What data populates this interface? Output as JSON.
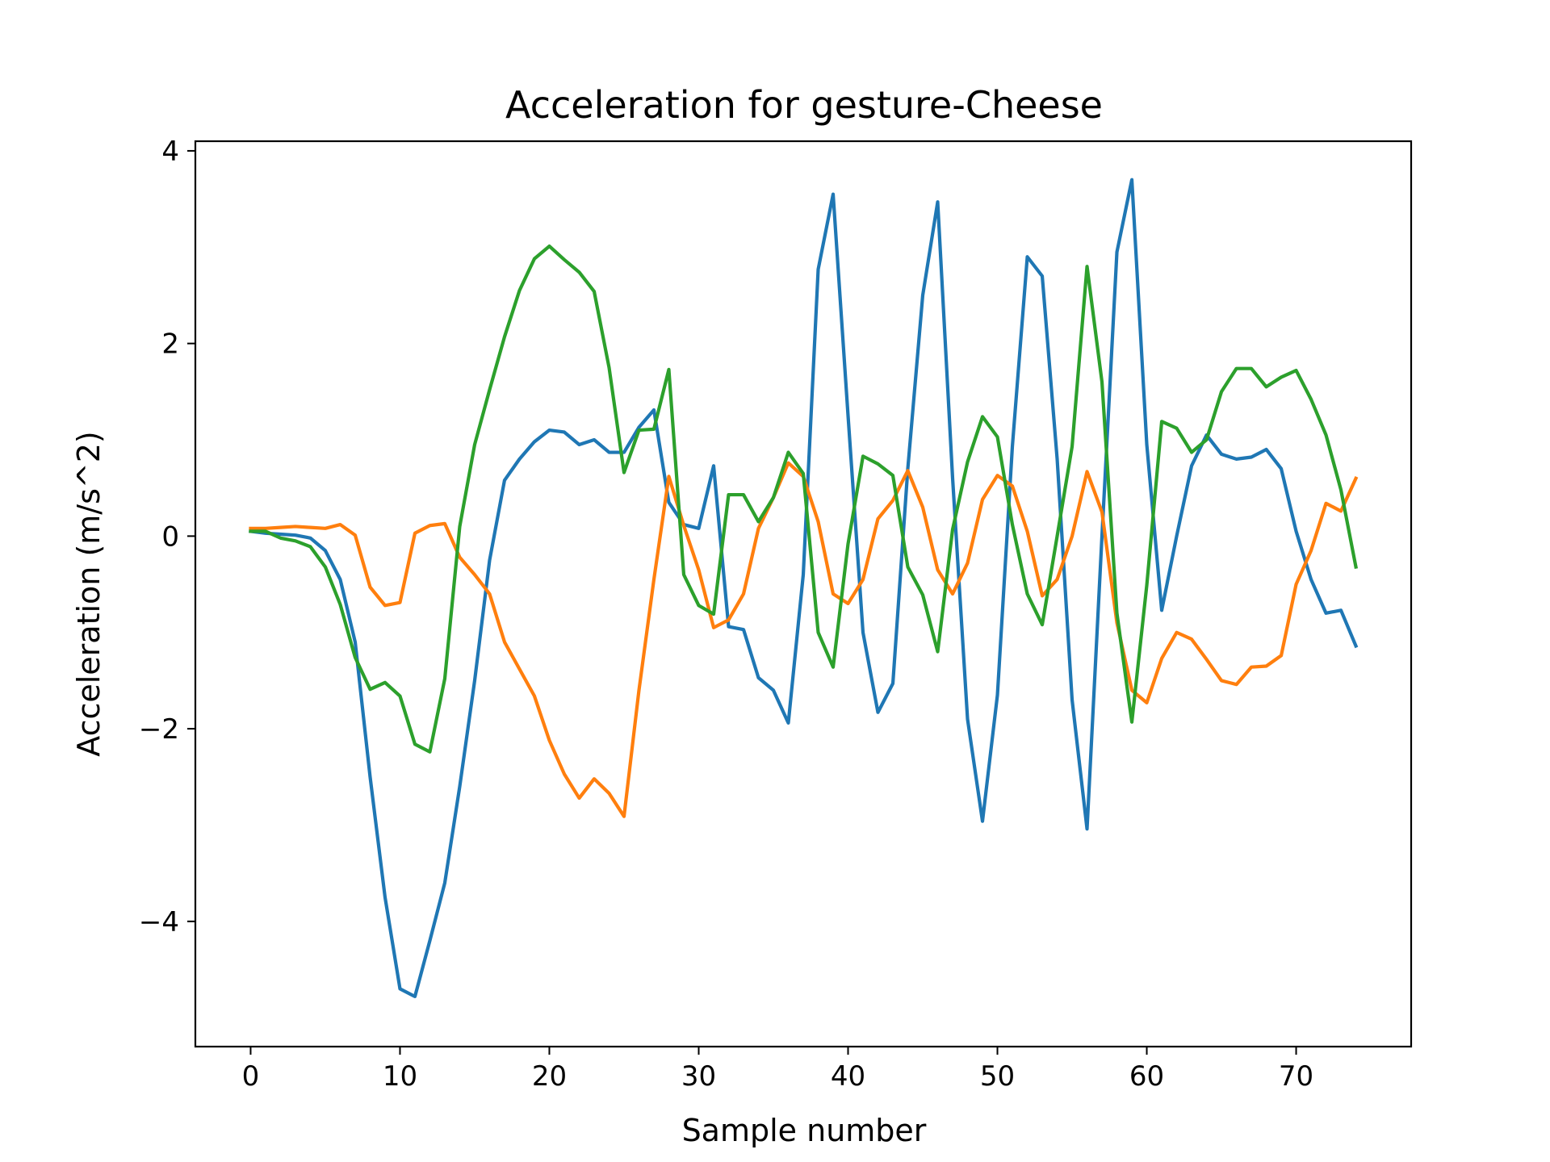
{
  "chart_data": {
    "type": "line",
    "title": "Acceleration for gesture-Cheese",
    "xlabel": "Sample number",
    "ylabel": "Acceleration (m/s^2)",
    "xlim": [
      -3.7,
      77.7
    ],
    "ylim": [
      -5.3,
      4.1
    ],
    "xticks": [
      0,
      10,
      20,
      30,
      40,
      50,
      60,
      70
    ],
    "yticks": [
      -4,
      -2,
      0,
      2,
      4
    ],
    "xtick_labels": [
      "0",
      "10",
      "20",
      "30",
      "40",
      "50",
      "60",
      "70"
    ],
    "ytick_labels": [
      "−4",
      "−2",
      "0",
      "2",
      "4"
    ],
    "grid": false,
    "legend": "none",
    "series": [
      {
        "color": "#1f77b4",
        "values": [
          0.05,
          0.03,
          0.02,
          0.01,
          -0.02,
          -0.15,
          -0.45,
          -1.1,
          -2.5,
          -3.75,
          -4.7,
          -4.78,
          -4.2,
          -3.6,
          -2.6,
          -1.5,
          -0.25,
          0.58,
          0.8,
          0.98,
          1.1,
          1.08,
          0.95,
          1.0,
          0.87,
          0.87,
          1.13,
          1.31,
          0.35,
          0.12,
          0.08,
          0.73,
          -0.94,
          -0.97,
          -1.47,
          -1.6,
          -1.94,
          -0.4,
          2.77,
          3.55,
          1.25,
          -1.0,
          -1.83,
          -1.53,
          0.7,
          2.5,
          3.47,
          0.6,
          -1.9,
          -2.96,
          -1.65,
          0.93,
          2.9,
          2.7,
          0.8,
          -1.7,
          -3.04,
          0.0,
          2.95,
          3.7,
          0.95,
          -0.77,
          0.0,
          0.73,
          1.05,
          0.85,
          0.8,
          0.82,
          0.9,
          0.7,
          0.05,
          -0.45,
          -0.8,
          -0.77,
          -1.14
        ]
      },
      {
        "color": "#ff7f0e",
        "values": [
          0.08,
          0.08,
          0.09,
          0.1,
          0.09,
          0.08,
          0.12,
          0.01,
          -0.53,
          -0.72,
          -0.69,
          0.03,
          0.11,
          0.13,
          -0.22,
          -0.4,
          -0.6,
          -1.1,
          -1.38,
          -1.66,
          -2.12,
          -2.47,
          -2.72,
          -2.52,
          -2.67,
          -2.91,
          -1.6,
          -0.45,
          0.62,
          0.11,
          -0.35,
          -0.95,
          -0.87,
          -0.6,
          0.08,
          0.4,
          0.76,
          0.62,
          0.15,
          -0.6,
          -0.7,
          -0.45,
          0.18,
          0.37,
          0.68,
          0.3,
          -0.35,
          -0.6,
          -0.28,
          0.38,
          0.63,
          0.52,
          0.05,
          -0.62,
          -0.45,
          0.0,
          0.67,
          0.25,
          -0.9,
          -1.6,
          -1.73,
          -1.27,
          -1.0,
          -1.07,
          -1.28,
          -1.5,
          -1.54,
          -1.36,
          -1.35,
          -1.24,
          -0.5,
          -0.15,
          0.34,
          0.26,
          0.6
        ]
      },
      {
        "color": "#2ca02c",
        "values": [
          0.05,
          0.05,
          -0.02,
          -0.05,
          -0.11,
          -0.32,
          -0.71,
          -1.26,
          -1.59,
          -1.52,
          -1.66,
          -2.16,
          -2.24,
          -1.48,
          0.1,
          0.95,
          1.52,
          2.07,
          2.55,
          2.88,
          3.01,
          2.87,
          2.74,
          2.54,
          1.75,
          0.66,
          1.1,
          1.11,
          1.73,
          -0.4,
          -0.72,
          -0.81,
          0.43,
          0.43,
          0.15,
          0.4,
          0.87,
          0.65,
          -1.0,
          -1.36,
          -0.08,
          0.83,
          0.75,
          0.63,
          -0.32,
          -0.61,
          -1.2,
          0.07,
          0.77,
          1.24,
          1.03,
          0.12,
          -0.6,
          -0.92,
          0.0,
          0.93,
          2.8,
          1.6,
          -0.8,
          -1.93,
          -0.51,
          1.19,
          1.12,
          0.87,
          1.0,
          1.5,
          1.74,
          1.74,
          1.55,
          1.65,
          1.72,
          1.42,
          1.05,
          0.48,
          -0.32
        ]
      }
    ]
  }
}
